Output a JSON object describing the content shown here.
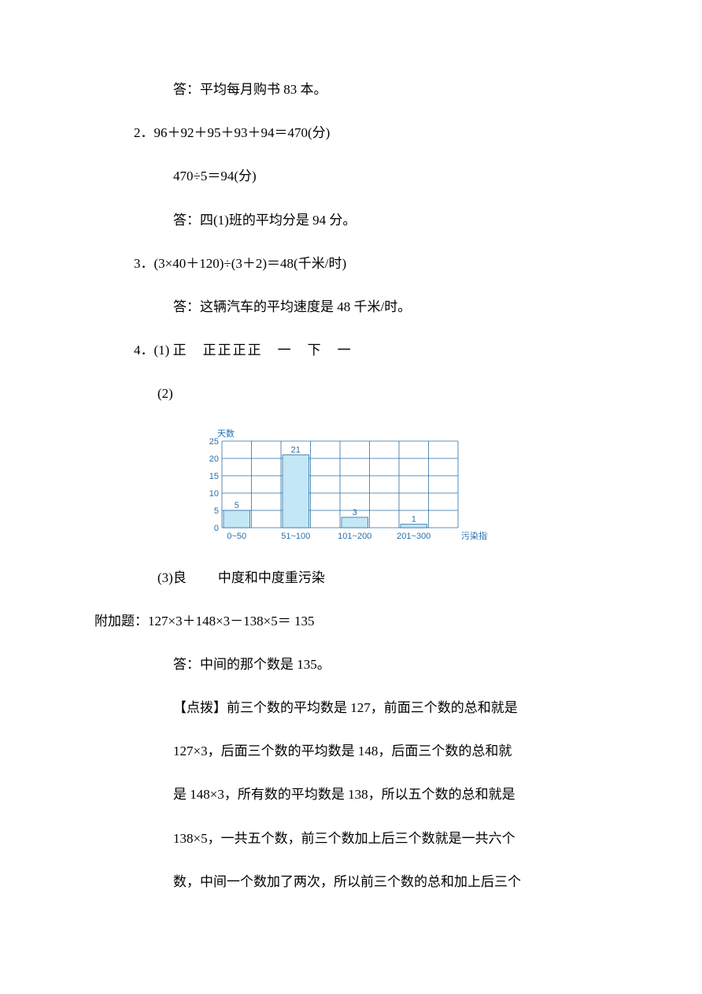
{
  "ans1_conclusion": "答：平均每月购书 83 本。",
  "q2": {
    "num": "2．",
    "calc": "96＋92＋95＋93＋94＝470(分)",
    "div": "470÷5＝94(分)",
    "ans": "答：四(1)班的平均分是 94 分。"
  },
  "q3": {
    "num": "3．",
    "calc": "(3×40＋120)÷(3＋2)＝48(千米/时)",
    "ans": "答：这辆汽车的平均速度是 48 千米/时。"
  },
  "q4": {
    "num": "4．",
    "p1_label": "(1)",
    "p1_tally": "正　正正正正　一　下　一",
    "p2_label": "(2)",
    "chart": {
      "ylabel": "天数",
      "xlabel": "污染指数",
      "yticks": [
        "0",
        "5",
        "10",
        "15",
        "20",
        "25"
      ],
      "ymax": 25,
      "categories": [
        "0~50",
        "51~100",
        "101~200",
        "201~300"
      ],
      "values": [
        5,
        21,
        3,
        1
      ],
      "bar_fill": "#c3e7f5",
      "bar_stroke": "#2a6fa8",
      "grid_stroke": "#2a6fa8",
      "text_color": "#2a6fa8",
      "font_size_axis": 11
    },
    "p3_label": "(3)",
    "p3_a": "良",
    "p3_b": "中度和中度重污染"
  },
  "extra": {
    "label": "附加题：",
    "calc": "127×3＋148×3－138×5＝ 135",
    "ans": "答：中间的那个数是 135。",
    "tip_label": "【点拨】",
    "tip_l1": "前三个数的平均数是 127，前面三个数的总和就是",
    "tip_l2": "127×3，后面三个数的平均数是 148，后面三个数的总和就",
    "tip_l3": "是 148×3，所有数的平均数是 138，所以五个数的总和就是",
    "tip_l4": "138×5，一共五个数，前三个数加上后三个数就是一共六个",
    "tip_l5": "数，中间一个数加了两次，所以前三个数的总和加上后三个"
  }
}
